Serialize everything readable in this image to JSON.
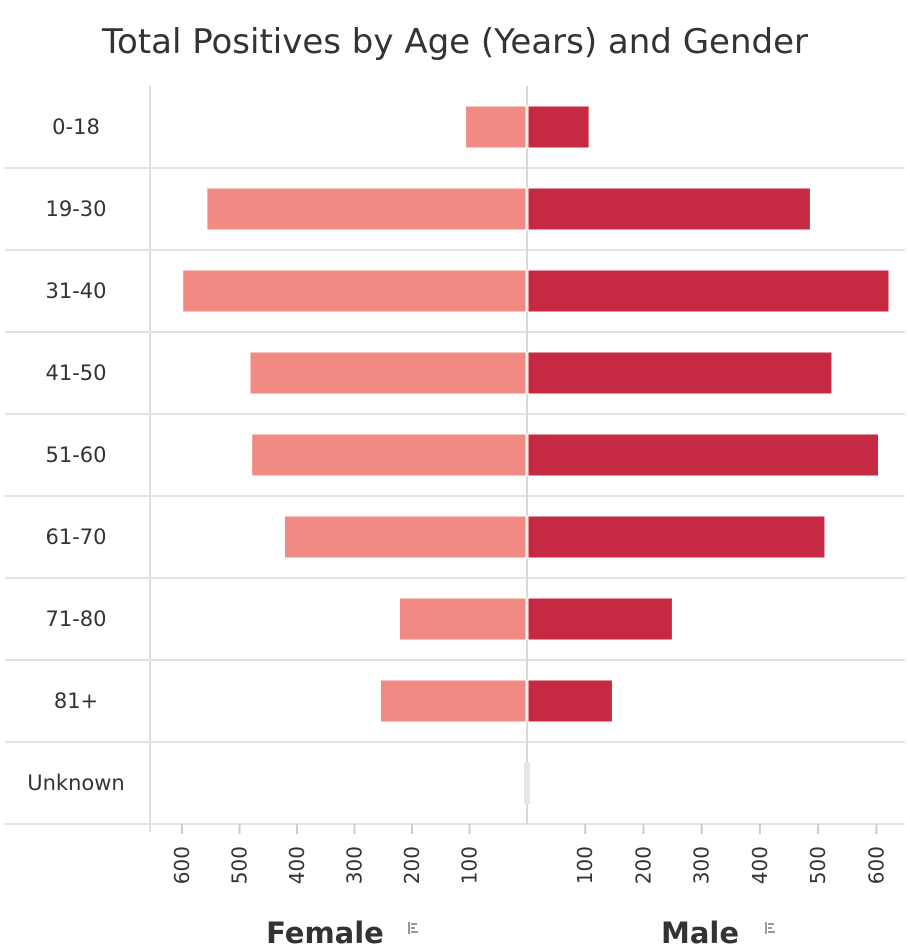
{
  "chart_data": {
    "type": "bar",
    "orientation": "horizontal-diverging",
    "title": "Total Positives by Age (Years) and Gender",
    "categories": [
      "0-18",
      "19-30",
      "31-40",
      "41-50",
      "51-60",
      "61-70",
      "71-80",
      "81+",
      "Unknown"
    ],
    "series": [
      {
        "name": "Female",
        "side": "left",
        "color": "#f08a82",
        "values": [
          105,
          555,
          597,
          480,
          477,
          420,
          220,
          253,
          0
        ]
      },
      {
        "name": "Male",
        "side": "right",
        "color": "#c52a42",
        "values": [
          105,
          485,
          620,
          522,
          602,
          510,
          248,
          145,
          0
        ]
      }
    ],
    "xlim": [
      0,
      620
    ],
    "ticks": [
      100,
      200,
      300,
      400,
      500,
      600
    ],
    "tick_labels": [
      "100",
      "200",
      "300",
      "400",
      "500",
      "600"
    ],
    "left_axis_title": "Female",
    "right_axis_title": "Male",
    "sort_icon": "sort-icon",
    "grid": true
  }
}
